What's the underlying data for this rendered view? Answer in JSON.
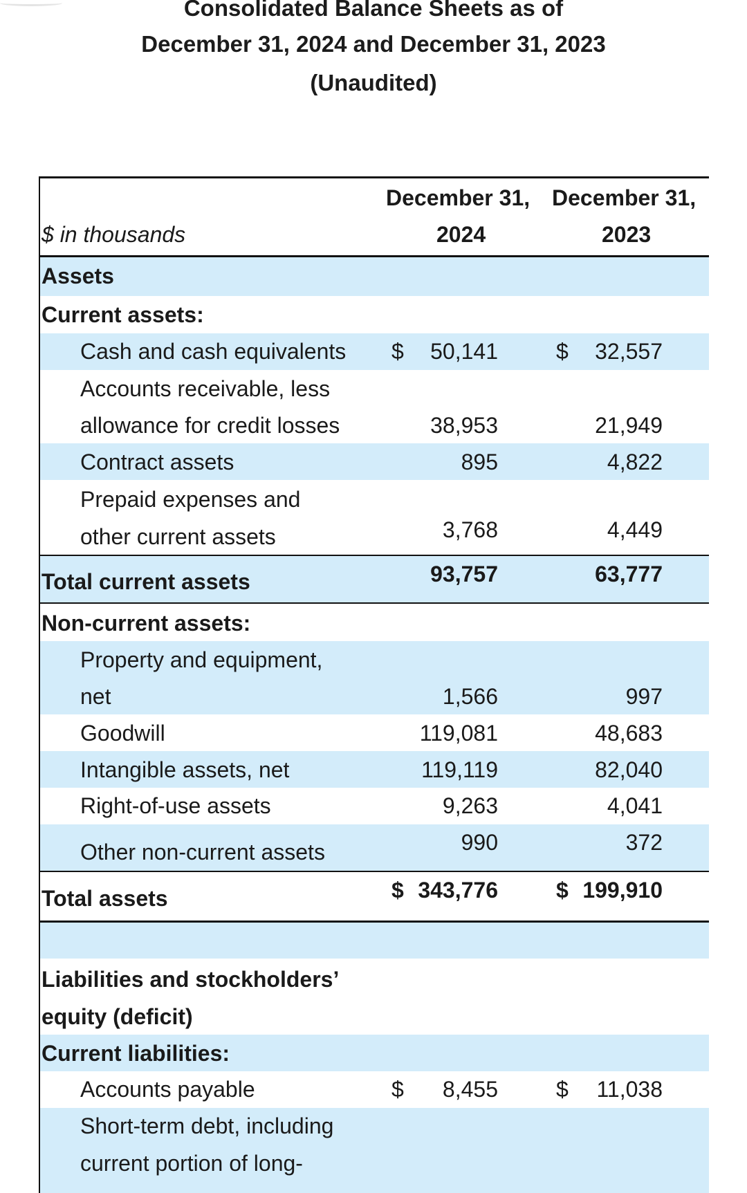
{
  "title": {
    "line1": "Consolidated Balance Sheets as of",
    "line2": "December 31, 2024 and December 31, 2023",
    "line3": "(Unaudited)"
  },
  "header": {
    "units": "$ in thousands",
    "col1_top": "December 31,",
    "col1_year": "2024",
    "col2_top": "December 31,",
    "col2_year": "2023"
  },
  "rows": {
    "assets": "Assets",
    "current_assets": "Current assets:",
    "cash": {
      "l1": "Cash and cash equivalents",
      "d1": "$",
      "v1": "50,141",
      "d2": "$",
      "v2": "32,557"
    },
    "ar": {
      "l1": "Accounts receivable, less",
      "l2": "allowance for credit losses",
      "v1": "38,953",
      "v2": "21,949"
    },
    "contract": {
      "l1": "Contract assets",
      "v1": "895",
      "v2": "4,822"
    },
    "prepaid": {
      "l1": "Prepaid expenses and",
      "l2": "other current assets",
      "v1": "3,768",
      "v2": "4,449"
    },
    "total_current": {
      "l1": "Total current assets",
      "v1": "93,757",
      "v2": "63,777"
    },
    "noncurrent": "Non-current assets:",
    "ppe": {
      "l1": "Property and equipment,",
      "l2": "net",
      "v1": "1,566",
      "v2": "997"
    },
    "goodwill": {
      "l1": "Goodwill",
      "v1": "119,081",
      "v2": "48,683"
    },
    "intangible": {
      "l1": "Intangible assets, net",
      "v1": "119,119",
      "v2": "82,040"
    },
    "rou": {
      "l1": "Right-of-use assets",
      "v1": "9,263",
      "v2": "4,041"
    },
    "other_nc": {
      "l1": "Other non-current assets",
      "v1": "990",
      "v2": "372"
    },
    "total_assets": {
      "l1": "Total assets",
      "d1": "$",
      "v1": "343,776",
      "d2": "$",
      "v2": "199,910"
    },
    "liab_heading": {
      "l1": "Liabilities and stockholders’",
      "l2": "equity (deficit)"
    },
    "current_liab": "Current liabilities:",
    "ap": {
      "l1": "Accounts payable",
      "d1": "$",
      "v1": "8,455",
      "d2": "$",
      "v2": "11,038"
    },
    "std": {
      "l1": "Short-term debt, including",
      "l2": "current portion of long-"
    }
  }
}
